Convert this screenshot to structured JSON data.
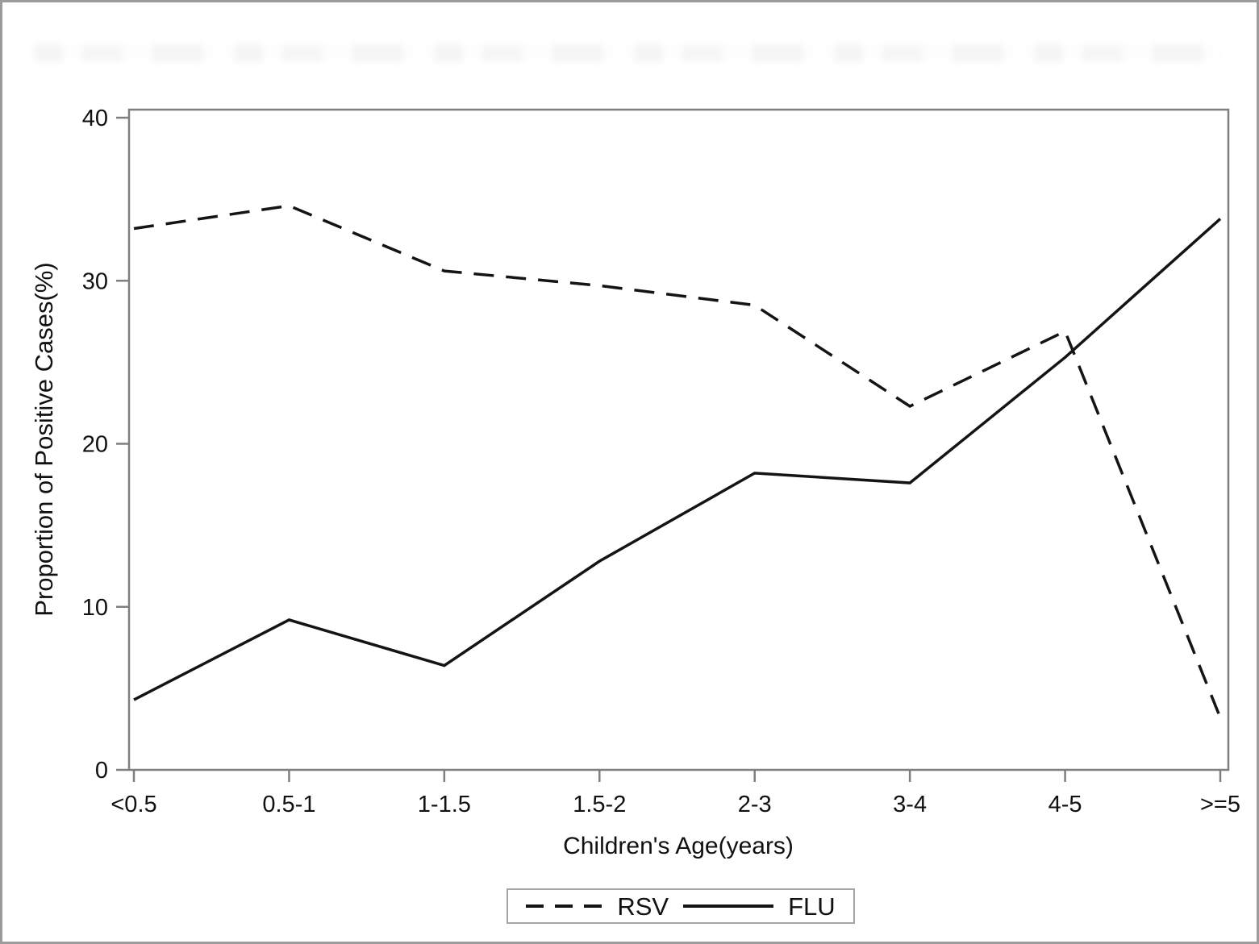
{
  "chart_data": {
    "type": "line",
    "title": "",
    "xlabel": "Children's Age(years)",
    "ylabel": "Proportion of Positive Cases(%)",
    "categories": [
      "<0.5",
      "0.5-1",
      "1-1.5",
      "1.5-2",
      "2-3",
      "3-4",
      "4-5",
      ">=5"
    ],
    "series": [
      {
        "name": "RSV",
        "style": "dashed",
        "values": [
          33.2,
          34.6,
          30.6,
          29.7,
          28.5,
          22.3,
          26.9,
          3.2
        ]
      },
      {
        "name": "FLU",
        "style": "solid",
        "values": [
          4.3,
          9.2,
          6.4,
          12.8,
          18.2,
          17.6,
          25.3,
          33.8
        ]
      }
    ],
    "ylim": [
      0,
      40
    ],
    "yticks": [
      0,
      10,
      20,
      30,
      40
    ],
    "grid": "off",
    "legend_position": "bottom"
  },
  "colors": {
    "data_line": "#141414",
    "axis": "#7f7f7f",
    "tick_text": "#111111",
    "legend_border": "#a6a6a6",
    "frame": "#9b9b9b"
  }
}
